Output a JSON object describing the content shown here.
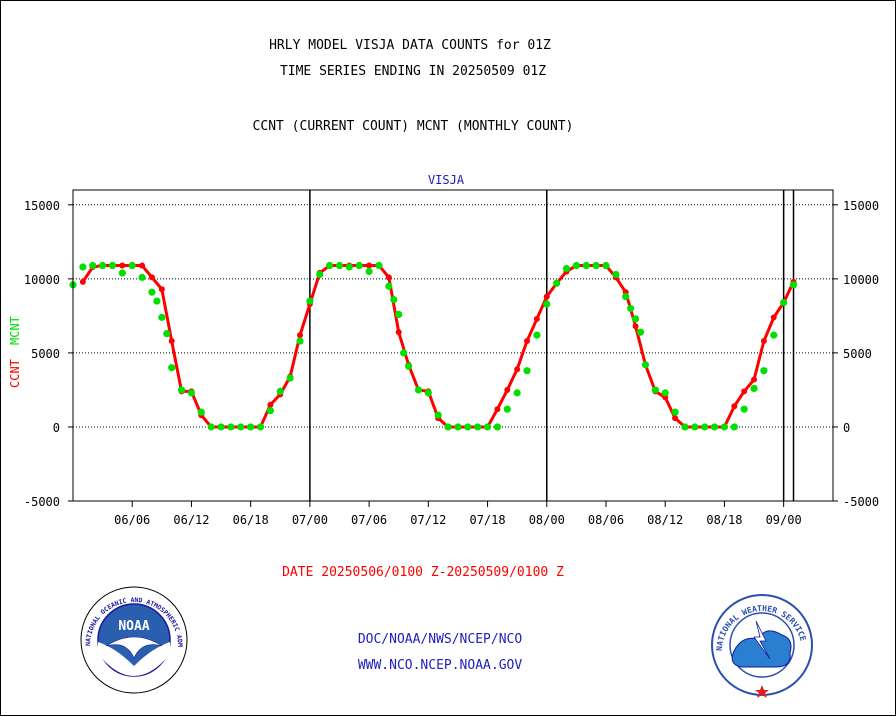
{
  "header": {
    "line1": "HRLY MODEL VISJA DATA COUNTS for 01Z",
    "line2": "TIME SERIES ENDING IN 20250509 01Z",
    "line3": "CCNT (CURRENT COUNT) MCNT (MONTHLY COUNT)"
  },
  "footer": {
    "date_range": "DATE 20250506/0100 Z-20250509/0100 Z",
    "org": "DOC/NOAA/NWS/NCEP/NCO",
    "url": "WWW.NCO.NCEP.NOAA.GOV"
  },
  "logos": {
    "noaa_inner": "NOAA",
    "noaa_ring": "NATIONAL OCEANIC AND ATMOSPHERIC ADMINISTRATION · U.S. DEPARTMENT OF COMMERCE",
    "nws_ring": "NATIONAL WEATHER SERVICE"
  },
  "colors": {
    "ccnt": "#ff0000",
    "mcnt": "#00e000",
    "axis_title": "#2020c0",
    "grid": "#000000"
  },
  "chart_data": {
    "type": "line",
    "title": "VISJA",
    "ylabel_left": [
      "CCNT",
      "MCNT"
    ],
    "x_unit": "hours from 06/00",
    "xlim": [
      0,
      77
    ],
    "ylim": [
      -5000,
      16000
    ],
    "y_ticks": [
      15000,
      10000,
      5000,
      0,
      -5000
    ],
    "y_tick_labels": [
      "15000",
      "10000",
      "5000",
      "0",
      "-5000"
    ],
    "x_ticks": [
      6,
      12,
      18,
      24,
      30,
      36,
      42,
      48,
      54,
      60,
      66,
      72
    ],
    "x_tick_labels": [
      "06/06",
      "06/12",
      "06/18",
      "07/00",
      "07/06",
      "07/12",
      "07/18",
      "08/00",
      "08/06",
      "08/12",
      "08/18",
      "09/00"
    ],
    "day_boundaries": [
      24,
      48,
      72
    ],
    "end_marker": 73,
    "grid": "horizontal dotted",
    "series": [
      {
        "name": "CCNT",
        "x": [
          1,
          2,
          3,
          4,
          5,
          6,
          7,
          8,
          9,
          10,
          11,
          12,
          13,
          14,
          15,
          16,
          17,
          18,
          19,
          20,
          21,
          22,
          23,
          24,
          25,
          26,
          27,
          28,
          29,
          30,
          31,
          32,
          33,
          34,
          35,
          36,
          37,
          38,
          39,
          40,
          41,
          42,
          43,
          44,
          45,
          46,
          47,
          48,
          49,
          50,
          51,
          52,
          53,
          54,
          55,
          56,
          57,
          58,
          59,
          60,
          61,
          62,
          63,
          64,
          65,
          66,
          67,
          68,
          69,
          70,
          71,
          72,
          73
        ],
        "values": [
          9800,
          10800,
          10900,
          10900,
          10900,
          10900,
          10900,
          10100,
          9300,
          5800,
          2400,
          2400,
          800,
          0,
          0,
          0,
          0,
          0,
          0,
          1500,
          2200,
          3400,
          6200,
          8300,
          10400,
          10900,
          10900,
          10900,
          10900,
          10900,
          10900,
          10100,
          6400,
          4200,
          2500,
          2400,
          600,
          0,
          0,
          0,
          0,
          0,
          1200,
          2500,
          3900,
          5800,
          7300,
          8800,
          9700,
          10500,
          10900,
          10900,
          10900,
          10900,
          10100,
          9100,
          6800,
          4200,
          2400,
          2000,
          600,
          0,
          0,
          0,
          0,
          0,
          1400,
          2400,
          3200,
          5800,
          7400,
          8400,
          9800
        ]
      },
      {
        "name": "MCNT",
        "x": [
          0,
          1,
          2,
          3,
          4,
          5,
          6,
          7,
          8,
          8.5,
          9,
          9.5,
          10,
          11,
          12,
          13,
          14,
          15,
          16,
          17,
          18,
          19,
          20,
          21,
          22,
          23,
          24,
          25,
          26,
          27,
          28,
          29,
          30,
          31,
          32,
          32.5,
          33,
          33.5,
          34,
          35,
          36,
          37,
          38,
          39,
          40,
          41,
          42,
          43,
          44,
          45,
          46,
          47,
          48,
          49,
          50,
          51,
          52,
          53,
          54,
          55,
          56,
          56.5,
          57,
          57.5,
          58,
          59,
          60,
          61,
          62,
          63,
          64,
          65,
          66,
          67,
          68,
          69,
          70,
          71,
          72,
          73
        ],
        "values": [
          9600,
          10800,
          10900,
          10900,
          10900,
          10400,
          10900,
          10100,
          9100,
          8500,
          7400,
          6300,
          4000,
          2500,
          2300,
          1000,
          0,
          0,
          0,
          0,
          0,
          0,
          1100,
          2400,
          3300,
          5800,
          8500,
          10300,
          10900,
          10900,
          10800,
          10900,
          10500,
          10900,
          9500,
          8600,
          7600,
          5000,
          4100,
          2500,
          2300,
          800,
          0,
          0,
          0,
          0,
          0,
          0,
          1200,
          2300,
          3800,
          6200,
          8300,
          9700,
          10700,
          10900,
          10900,
          10900,
          10900,
          10300,
          8800,
          8000,
          7300,
          6400,
          4200,
          2500,
          2300,
          1000,
          0,
          0,
          0,
          0,
          0,
          0,
          1200,
          2600,
          3800,
          6200,
          8400,
          9600
        ]
      }
    ]
  }
}
